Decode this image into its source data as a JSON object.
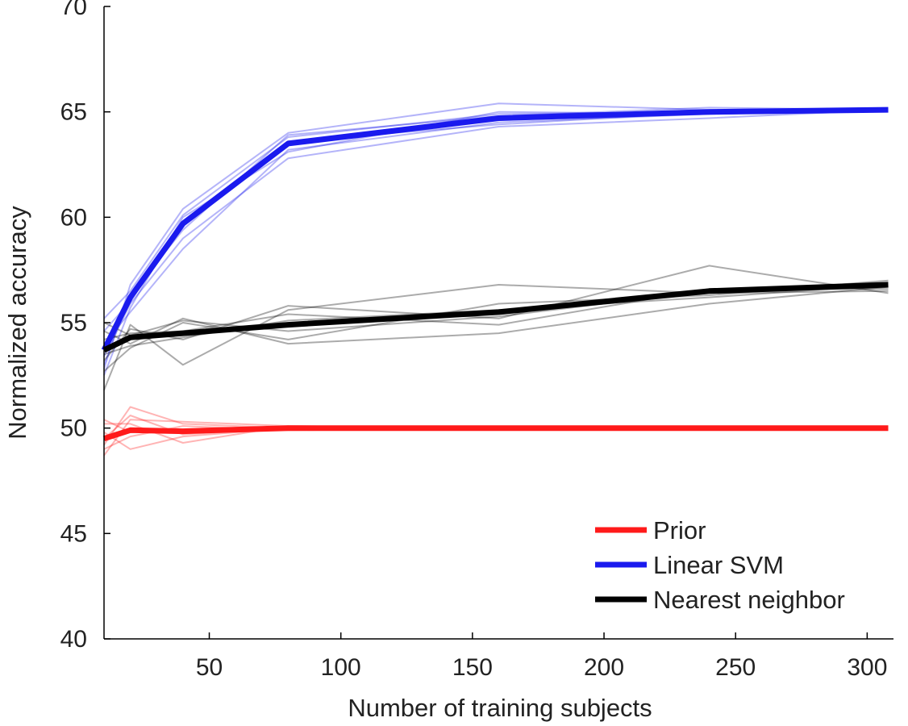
{
  "chart_data": {
    "type": "line",
    "title": "",
    "xlabel": "Number of training subjects",
    "ylabel": "Normalized accuracy",
    "xlim": [
      10,
      310
    ],
    "ylim": [
      40,
      70
    ],
    "xticks": [
      50,
      100,
      150,
      200,
      250,
      300
    ],
    "yticks": [
      40,
      45,
      50,
      55,
      60,
      65,
      70
    ],
    "x": [
      10,
      20,
      40,
      80,
      160,
      240,
      308
    ],
    "grid": false,
    "legend_position": "bottom-right",
    "series": [
      {
        "name": "Prior",
        "color": "#ff1a1a",
        "values": [
          49.5,
          49.9,
          49.85,
          50.0,
          50.0,
          50.0,
          50.0
        ],
        "runs": [
          [
            48.7,
            50.4,
            50.3,
            50.1,
            50.0,
            50.0,
            50.0
          ],
          [
            49.2,
            51.0,
            50.2,
            50.0,
            50.0,
            50.0,
            50.0
          ],
          [
            49.8,
            49.0,
            49.6,
            50.0,
            50.0,
            50.0,
            50.0
          ],
          [
            50.2,
            50.2,
            49.3,
            50.1,
            50.0,
            50.0,
            50.0
          ],
          [
            49.0,
            49.6,
            50.1,
            49.9,
            50.0,
            50.0,
            50.0
          ],
          [
            50.4,
            49.8,
            49.9,
            50.0,
            50.0,
            50.0,
            50.0
          ],
          [
            49.5,
            50.6,
            49.7,
            50.0,
            50.0,
            50.0,
            50.0
          ]
        ]
      },
      {
        "name": "Linear SVM",
        "color": "#1a1aee",
        "values": [
          53.7,
          56.2,
          59.7,
          63.5,
          64.7,
          65.0,
          65.1
        ],
        "runs": [
          [
            52.8,
            56.8,
            60.4,
            64.0,
            65.4,
            65.1,
            65.1
          ],
          [
            53.4,
            55.9,
            59.0,
            62.8,
            64.3,
            64.7,
            65.1
          ],
          [
            55.2,
            56.5,
            60.1,
            63.8,
            64.9,
            65.0,
            65.1
          ],
          [
            54.0,
            55.5,
            58.5,
            63.2,
            64.5,
            64.9,
            65.1
          ],
          [
            53.0,
            56.3,
            59.4,
            63.9,
            64.8,
            65.2,
            65.1
          ],
          [
            52.5,
            55.7,
            60.0,
            63.1,
            65.0,
            64.9,
            65.1
          ],
          [
            54.6,
            56.0,
            59.8,
            63.6,
            64.4,
            65.0,
            65.1
          ]
        ]
      },
      {
        "name": "Nearest neighbor",
        "color": "#000000",
        "values": [
          53.7,
          54.3,
          54.5,
          54.9,
          55.5,
          56.5,
          56.8
        ],
        "runs": [
          [
            51.8,
            54.9,
            53.0,
            55.6,
            56.8,
            56.4,
            56.5
          ],
          [
            54.6,
            54.0,
            55.2,
            54.0,
            54.5,
            55.9,
            56.7
          ],
          [
            53.2,
            54.7,
            54.2,
            55.8,
            55.2,
            57.7,
            56.4
          ],
          [
            52.7,
            53.8,
            55.0,
            54.2,
            55.9,
            56.3,
            57.0
          ],
          [
            54.2,
            54.5,
            54.6,
            55.4,
            54.9,
            56.6,
            56.6
          ],
          [
            53.5,
            53.9,
            54.3,
            55.1,
            55.6,
            56.2,
            56.8
          ],
          [
            55.0,
            54.4,
            55.1,
            54.6,
            55.3,
            56.5,
            56.9
          ]
        ]
      }
    ]
  }
}
